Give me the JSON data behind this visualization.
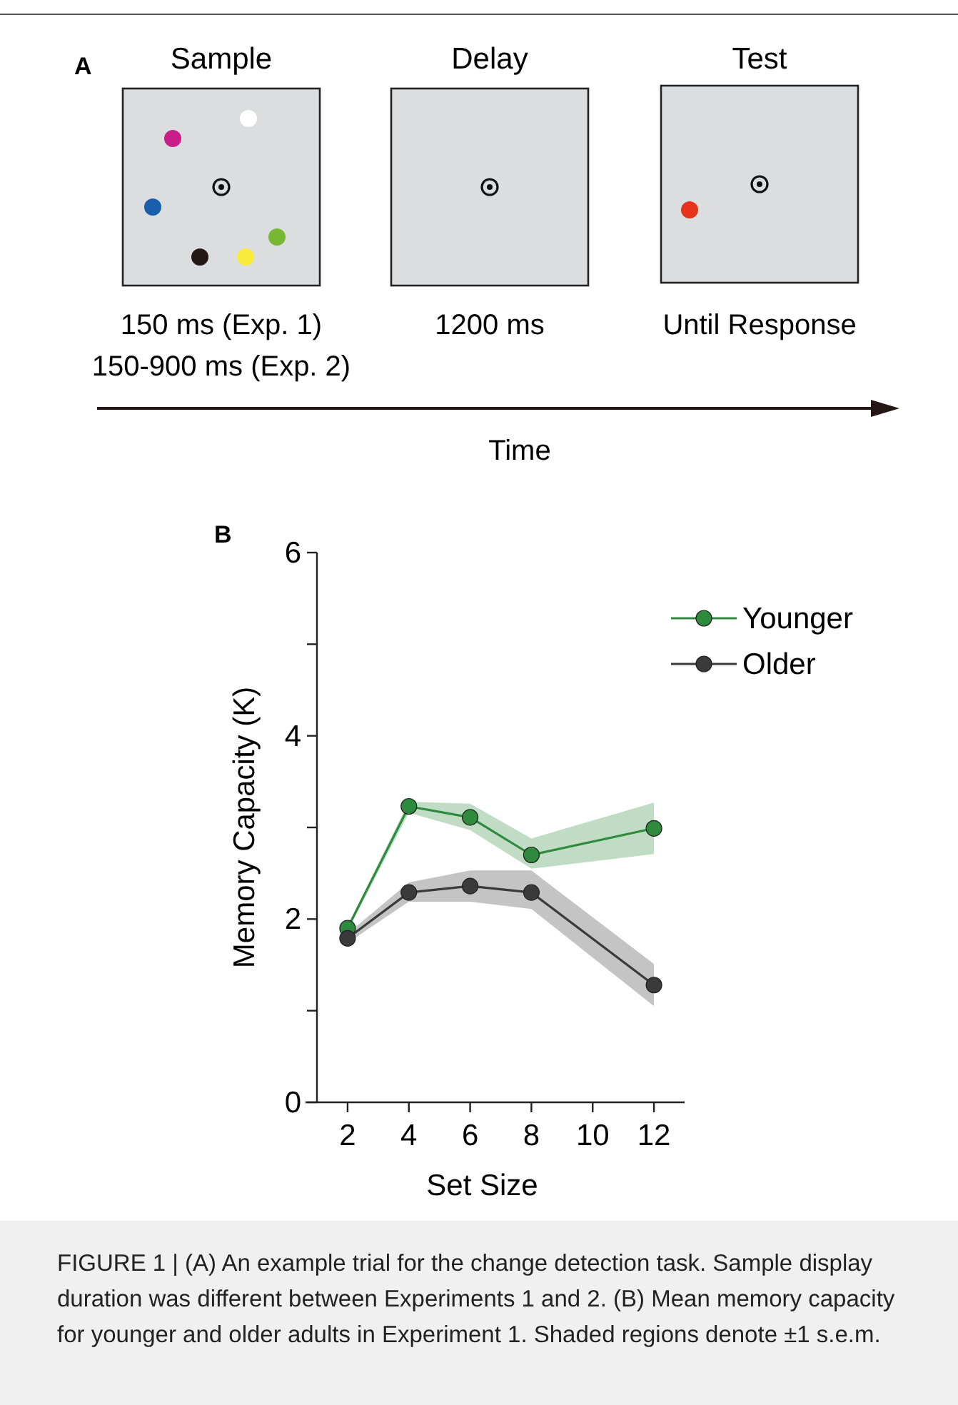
{
  "chart_data": [
    {
      "type": "other",
      "title": "A",
      "categories": [
        "Sample",
        "Delay",
        "Test"
      ],
      "annotations": [
        "150 ms (Exp. 1)",
        "150-900 ms (Exp. 2)",
        "1200 ms",
        "Until Response"
      ],
      "xlabel": "Time"
    },
    {
      "type": "line",
      "title": "B",
      "xlabel": "Set Size",
      "ylabel": "Memory Capacity (K)",
      "x": [
        2,
        4,
        6,
        8,
        12
      ],
      "xlim": [
        1,
        13
      ],
      "xticks": [
        2,
        4,
        6,
        8,
        10,
        12
      ],
      "ylim": [
        0,
        6
      ],
      "yticks": [
        0,
        {
          "value": 1,
          "label": null
        },
        2,
        {
          "value": 3,
          "label": null
        },
        4,
        {
          "value": 5,
          "label": null
        },
        6
      ],
      "legend": "top right",
      "marker": "circle",
      "grid": false,
      "series": [
        {
          "name": "Younger",
          "color": "#2e8b3e",
          "values": [
            1.9,
            3.23,
            3.11,
            2.7,
            2.99
          ],
          "lower": [
            1.87,
            3.16,
            2.97,
            2.55,
            2.71
          ],
          "upper": [
            1.93,
            3.28,
            3.26,
            2.88,
            3.27
          ]
        },
        {
          "name": "Older",
          "color": "#3a3a3a",
          "values": [
            1.79,
            2.29,
            2.36,
            2.29,
            1.28
          ],
          "lower": [
            1.74,
            2.19,
            2.19,
            2.11,
            1.05
          ],
          "upper": [
            1.84,
            2.4,
            2.53,
            2.53,
            1.51
          ]
        }
      ],
      "annotations": [
        "FIGURE 1 | (A) An example trial for the change detection task. Sample display duration was different between Experiments 1 and 2. (B) Mean memory capacity for younger and older adults in Experiment 1. Shaded regions denote ±1 s.e.m."
      ]
    }
  ]
}
